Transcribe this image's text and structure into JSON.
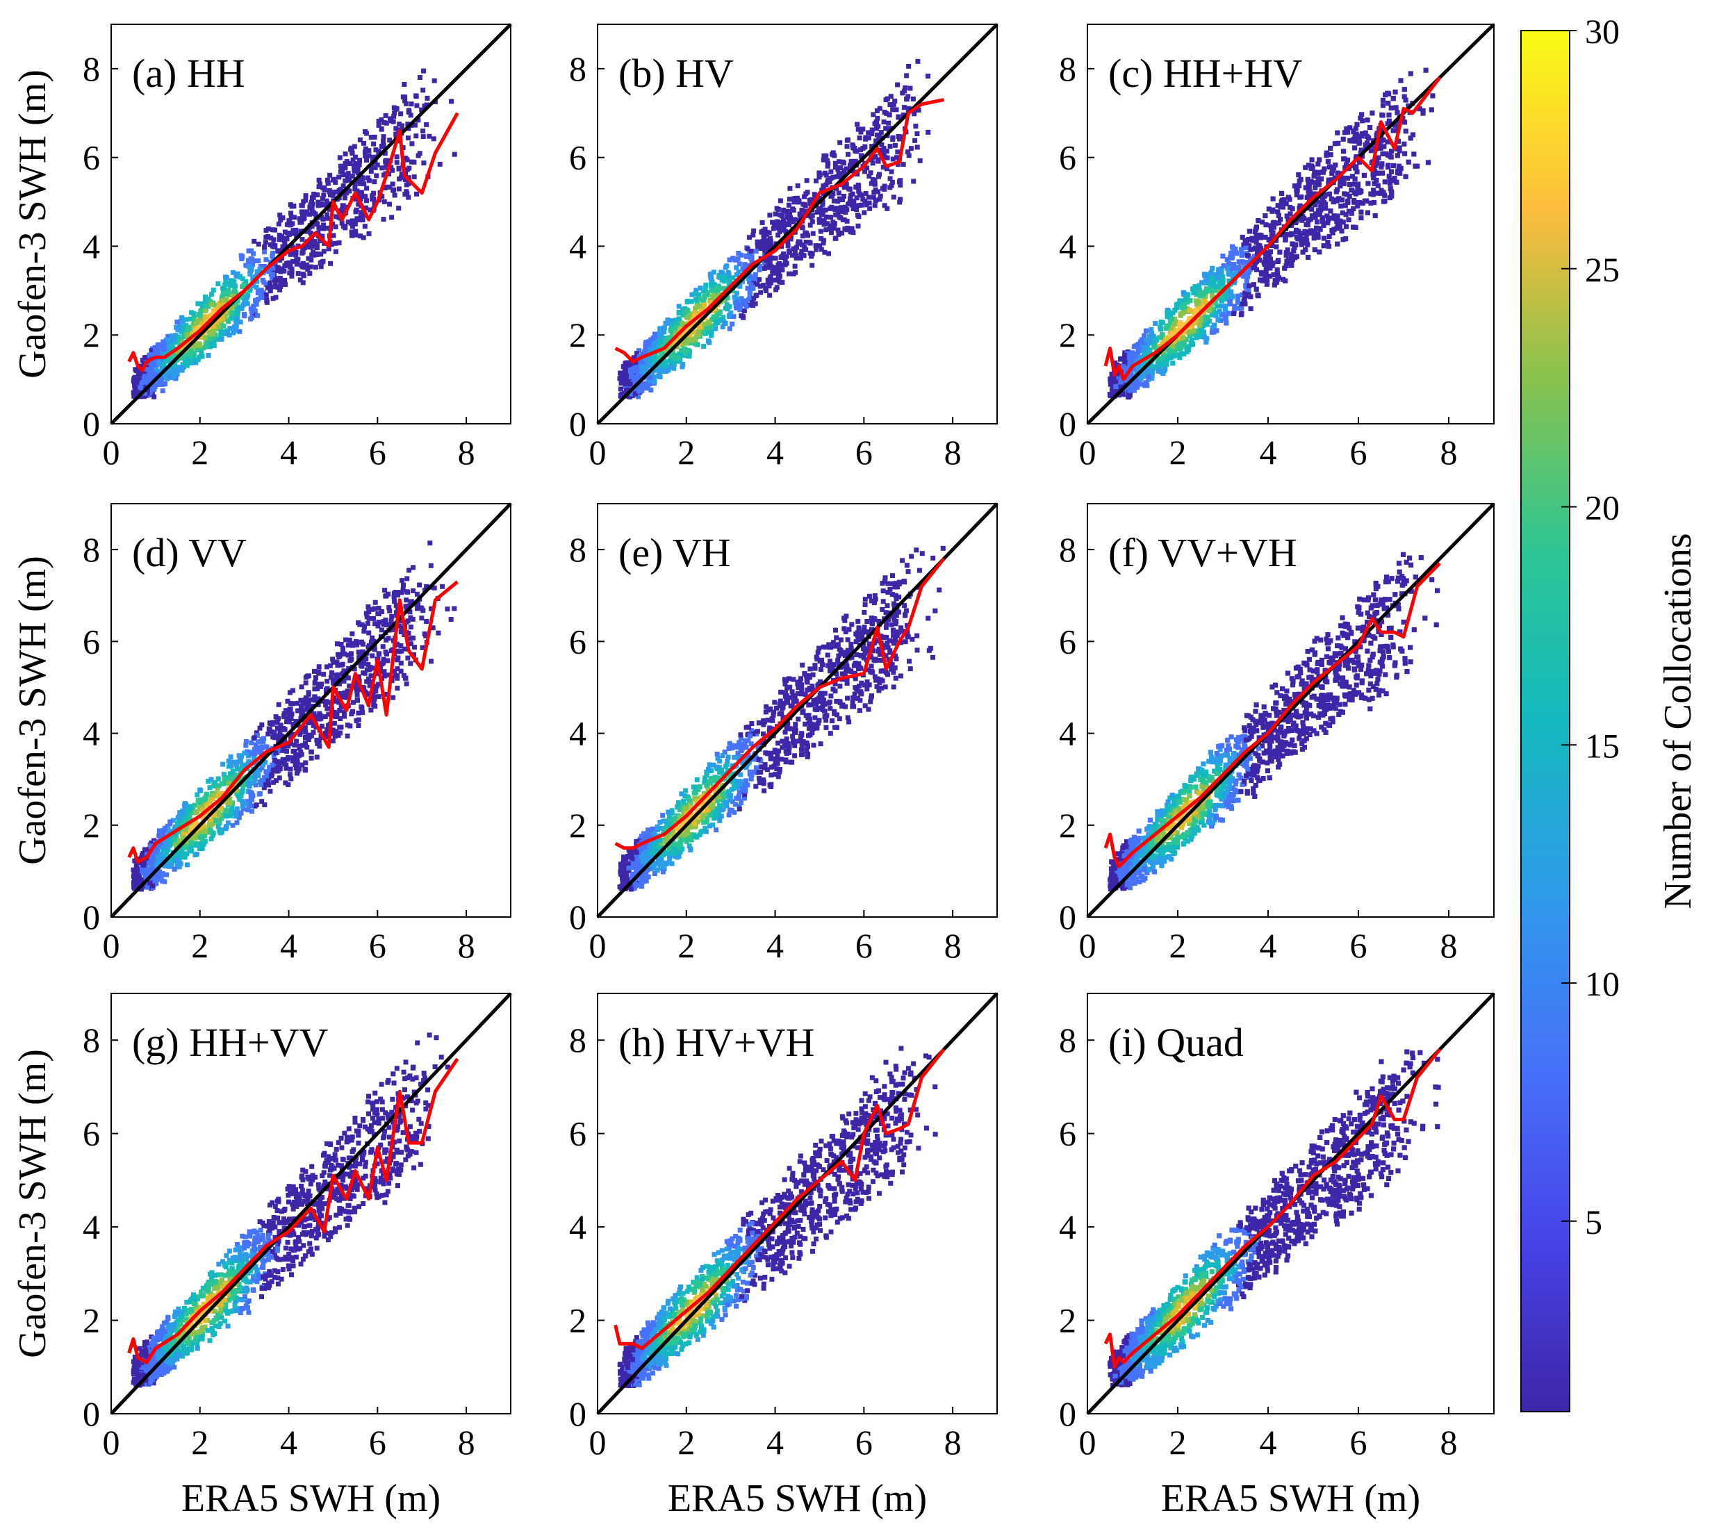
{
  "chart_data": [
    {
      "type": "scatter",
      "subtype": "density-heatmap",
      "title": "(a) HH",
      "xlabel": "",
      "ylabel": "Gaofen-3 SWH (m)",
      "xlim": [
        0,
        9
      ],
      "ylim": [
        0,
        9
      ],
      "x_ticks": [
        "0",
        "2",
        "4",
        "6",
        "8"
      ],
      "y_ticks": [
        "0",
        "2",
        "4",
        "6",
        "8"
      ],
      "series": [
        {
          "name": "1:1 line",
          "color": "#000000",
          "x": [
            0,
            9
          ],
          "y": [
            0,
            9
          ]
        },
        {
          "name": "mean curve",
          "color": "#ff0000",
          "x": [
            0.4,
            0.5,
            0.6,
            0.7,
            0.8,
            1.0,
            1.2,
            1.5,
            2.0,
            2.5,
            3.0,
            3.5,
            4.0,
            4.3,
            4.6,
            4.9,
            5.0,
            5.2,
            5.5,
            5.8,
            6.0,
            6.2,
            6.5,
            6.6,
            7.0,
            7.3,
            7.8
          ],
          "y": [
            1.4,
            1.6,
            1.3,
            1.2,
            1.4,
            1.5,
            1.5,
            1.7,
            2.1,
            2.6,
            3.0,
            3.5,
            3.9,
            4.0,
            4.3,
            4.0,
            5.0,
            4.6,
            5.2,
            4.6,
            5.0,
            5.6,
            6.6,
            5.6,
            5.2,
            6.1,
            7.0
          ]
        }
      ]
    },
    {
      "type": "scatter",
      "subtype": "density-heatmap",
      "title": "(b) HV",
      "xlabel": "",
      "ylabel": "",
      "xlim": [
        0,
        9
      ],
      "ylim": [
        0,
        9
      ],
      "x_ticks": [
        "0",
        "2",
        "4",
        "6",
        "8"
      ],
      "y_ticks": [
        "0",
        "2",
        "4",
        "6",
        "8"
      ],
      "series": [
        {
          "name": "1:1 line",
          "color": "#000000",
          "x": [
            0,
            9
          ],
          "y": [
            0,
            9
          ]
        },
        {
          "name": "mean curve",
          "color": "#ff0000",
          "x": [
            0.4,
            0.6,
            0.8,
            1.0,
            1.5,
            2.0,
            2.5,
            3.0,
            3.5,
            4.0,
            4.5,
            5.0,
            5.5,
            6.0,
            6.3,
            6.5,
            6.8,
            7.0,
            7.3,
            7.8
          ],
          "y": [
            1.7,
            1.6,
            1.4,
            1.5,
            1.7,
            2.2,
            2.6,
            3.1,
            3.6,
            3.9,
            4.4,
            5.2,
            5.4,
            5.8,
            6.2,
            5.8,
            5.9,
            7.0,
            7.2,
            7.3
          ]
        }
      ]
    },
    {
      "type": "scatter",
      "subtype": "density-heatmap",
      "title": "(c) HH+HV",
      "xlabel": "",
      "ylabel": "",
      "xlim": [
        0,
        9
      ],
      "ylim": [
        0,
        9
      ],
      "x_ticks": [
        "0",
        "2",
        "4",
        "6",
        "8"
      ],
      "y_ticks": [
        "0",
        "2",
        "4",
        "6",
        "8"
      ],
      "series": [
        {
          "name": "1:1 line",
          "color": "#000000",
          "x": [
            0,
            9
          ],
          "y": [
            0,
            9
          ]
        },
        {
          "name": "mean curve",
          "color": "#ff0000",
          "x": [
            0.4,
            0.5,
            0.6,
            0.7,
            0.8,
            1.0,
            1.5,
            2.0,
            2.5,
            3.0,
            3.5,
            4.0,
            4.5,
            5.0,
            5.5,
            6.0,
            6.3,
            6.5,
            6.8,
            7.0,
            7.2,
            7.8
          ],
          "y": [
            1.3,
            1.7,
            1.1,
            1.3,
            1.0,
            1.3,
            1.6,
            2.0,
            2.5,
            3.0,
            3.5,
            4.0,
            4.6,
            5.1,
            5.5,
            6.0,
            5.7,
            6.8,
            6.2,
            7.1,
            7.0,
            7.8
          ]
        }
      ]
    },
    {
      "type": "scatter",
      "subtype": "density-heatmap",
      "title": "(d) VV",
      "xlabel": "",
      "ylabel": "Gaofen-3 SWH (m)",
      "xlim": [
        0,
        9
      ],
      "ylim": [
        0,
        9
      ],
      "x_ticks": [
        "0",
        "2",
        "4",
        "6",
        "8"
      ],
      "y_ticks": [
        "0",
        "2",
        "4",
        "6",
        "8"
      ],
      "series": [
        {
          "name": "1:1 line",
          "color": "#000000",
          "x": [
            0,
            9
          ],
          "y": [
            0,
            9
          ]
        },
        {
          "name": "mean curve",
          "color": "#ff0000",
          "x": [
            0.4,
            0.5,
            0.6,
            0.8,
            1.0,
            1.5,
            2.0,
            2.5,
            3.0,
            3.5,
            4.0,
            4.5,
            4.9,
            5.0,
            5.3,
            5.5,
            5.8,
            6.0,
            6.2,
            6.5,
            6.7,
            7.0,
            7.3,
            7.8
          ],
          "y": [
            1.3,
            1.5,
            1.2,
            1.3,
            1.6,
            1.9,
            2.2,
            2.6,
            3.2,
            3.6,
            3.8,
            4.4,
            3.7,
            5.0,
            4.5,
            5.3,
            4.6,
            5.6,
            4.4,
            6.9,
            5.8,
            5.4,
            6.9,
            7.3
          ]
        }
      ]
    },
    {
      "type": "scatter",
      "subtype": "density-heatmap",
      "title": "(e) VH",
      "xlabel": "",
      "ylabel": "",
      "xlim": [
        0,
        9
      ],
      "ylim": [
        0,
        9
      ],
      "x_ticks": [
        "0",
        "2",
        "4",
        "6",
        "8"
      ],
      "y_ticks": [
        "0",
        "2",
        "4",
        "6",
        "8"
      ],
      "series": [
        {
          "name": "1:1 line",
          "color": "#000000",
          "x": [
            0,
            9
          ],
          "y": [
            0,
            9
          ]
        },
        {
          "name": "mean curve",
          "color": "#ff0000",
          "x": [
            0.4,
            0.6,
            0.8,
            1.0,
            1.5,
            2.0,
            2.5,
            3.0,
            3.5,
            4.0,
            4.5,
            5.0,
            5.5,
            6.0,
            6.3,
            6.5,
            6.8,
            7.0,
            7.3,
            7.8
          ],
          "y": [
            1.6,
            1.5,
            1.5,
            1.6,
            1.8,
            2.2,
            2.7,
            3.2,
            3.7,
            4.1,
            4.6,
            5.0,
            5.2,
            5.3,
            6.3,
            5.4,
            6.0,
            6.3,
            7.2,
            7.8
          ]
        }
      ]
    },
    {
      "type": "scatter",
      "subtype": "density-heatmap",
      "title": "(f) VV+VH",
      "xlabel": "",
      "ylabel": "",
      "xlim": [
        0,
        9
      ],
      "ylim": [
        0,
        9
      ],
      "x_ticks": [
        "0",
        "2",
        "4",
        "6",
        "8"
      ],
      "y_ticks": [
        "0",
        "2",
        "4",
        "6",
        "8"
      ],
      "series": [
        {
          "name": "1:1 line",
          "color": "#000000",
          "x": [
            0,
            9
          ],
          "y": [
            0,
            9
          ]
        },
        {
          "name": "mean curve",
          "color": "#ff0000",
          "x": [
            0.4,
            0.5,
            0.6,
            0.7,
            0.8,
            1.0,
            1.5,
            2.0,
            2.5,
            3.0,
            3.5,
            4.0,
            4.5,
            5.0,
            5.5,
            6.0,
            6.3,
            6.5,
            6.8,
            7.0,
            7.3,
            7.8
          ],
          "y": [
            1.5,
            1.8,
            1.3,
            1.1,
            1.2,
            1.4,
            1.8,
            2.2,
            2.6,
            3.1,
            3.6,
            4.0,
            4.6,
            5.1,
            5.5,
            5.9,
            6.5,
            6.2,
            6.2,
            6.1,
            7.2,
            7.7
          ]
        }
      ]
    },
    {
      "type": "scatter",
      "subtype": "density-heatmap",
      "title": "(g) HH+VV",
      "xlabel": "ERA5 SWH (m)",
      "ylabel": "Gaofen-3 SWH (m)",
      "xlim": [
        0,
        9
      ],
      "ylim": [
        0,
        9
      ],
      "x_ticks": [
        "0",
        "2",
        "4",
        "6",
        "8"
      ],
      "y_ticks": [
        "0",
        "2",
        "4",
        "6",
        "8"
      ],
      "series": [
        {
          "name": "1:1 line",
          "color": "#000000",
          "x": [
            0,
            9
          ],
          "y": [
            0,
            9
          ]
        },
        {
          "name": "mean curve",
          "color": "#ff0000",
          "x": [
            0.4,
            0.5,
            0.6,
            0.8,
            1.0,
            1.5,
            2.0,
            2.5,
            3.0,
            3.5,
            4.0,
            4.5,
            4.8,
            5.0,
            5.3,
            5.5,
            5.8,
            6.0,
            6.2,
            6.5,
            6.7,
            7.0,
            7.3,
            7.8
          ],
          "y": [
            1.3,
            1.6,
            1.2,
            1.1,
            1.4,
            1.7,
            2.2,
            2.6,
            3.1,
            3.6,
            3.9,
            4.4,
            3.9,
            5.1,
            4.6,
            5.2,
            4.6,
            5.7,
            5.0,
            6.9,
            5.8,
            5.8,
            6.9,
            7.6
          ]
        }
      ]
    },
    {
      "type": "scatter",
      "subtype": "density-heatmap",
      "title": "(h) HV+VH",
      "xlabel": "ERA5 SWH (m)",
      "ylabel": "",
      "xlim": [
        0,
        9
      ],
      "ylim": [
        0,
        9
      ],
      "x_ticks": [
        "0",
        "2",
        "4",
        "6",
        "8"
      ],
      "y_ticks": [
        "0",
        "2",
        "4",
        "6",
        "8"
      ],
      "series": [
        {
          "name": "1:1 line",
          "color": "#000000",
          "x": [
            0,
            9
          ],
          "y": [
            0,
            9
          ]
        },
        {
          "name": "mean curve",
          "color": "#ff0000",
          "x": [
            0.4,
            0.5,
            0.6,
            0.8,
            1.0,
            1.5,
            2.0,
            2.5,
            3.0,
            3.5,
            4.0,
            4.5,
            5.0,
            5.5,
            5.8,
            6.0,
            6.3,
            6.5,
            6.8,
            7.0,
            7.3,
            7.8
          ],
          "y": [
            1.9,
            1.5,
            1.5,
            1.5,
            1.4,
            1.8,
            2.2,
            2.6,
            3.1,
            3.6,
            4.1,
            4.6,
            5.0,
            5.4,
            5.0,
            6.0,
            6.6,
            6.0,
            6.1,
            6.2,
            7.2,
            7.8
          ]
        }
      ]
    },
    {
      "type": "scatter",
      "subtype": "density-heatmap",
      "title": "(i) Quad",
      "xlabel": "ERA5 SWH (m)",
      "ylabel": "",
      "xlim": [
        0,
        9
      ],
      "ylim": [
        0,
        9
      ],
      "x_ticks": [
        "0",
        "2",
        "4",
        "6",
        "8"
      ],
      "y_ticks": [
        "0",
        "2",
        "4",
        "6",
        "8"
      ],
      "series": [
        {
          "name": "1:1 line",
          "color": "#000000",
          "x": [
            0,
            9
          ],
          "y": [
            0,
            9
          ]
        },
        {
          "name": "mean curve",
          "color": "#ff0000",
          "x": [
            0.4,
            0.5,
            0.6,
            0.7,
            0.8,
            1.0,
            1.5,
            2.0,
            2.5,
            3.0,
            3.5,
            4.0,
            4.5,
            5.0,
            5.5,
            6.0,
            6.3,
            6.5,
            6.8,
            7.0,
            7.3,
            7.8
          ],
          "y": [
            1.5,
            1.7,
            1.0,
            1.2,
            1.1,
            1.3,
            1.7,
            2.1,
            2.6,
            3.1,
            3.6,
            4.0,
            4.5,
            5.1,
            5.4,
            5.9,
            6.2,
            6.8,
            6.3,
            6.3,
            7.2,
            7.8
          ]
        }
      ]
    }
  ],
  "colorbar": {
    "label": "Number of Collocations",
    "range": [
      1,
      30
    ],
    "ticks": [
      "5",
      "10",
      "15",
      "20",
      "25",
      "30"
    ],
    "colormap": [
      "#3e26a8",
      "#4772fa",
      "#2d9ce8",
      "#15b8be",
      "#2bc595",
      "#89c24c",
      "#ddbd2e",
      "#fdc23e",
      "#f9fb15"
    ]
  }
}
